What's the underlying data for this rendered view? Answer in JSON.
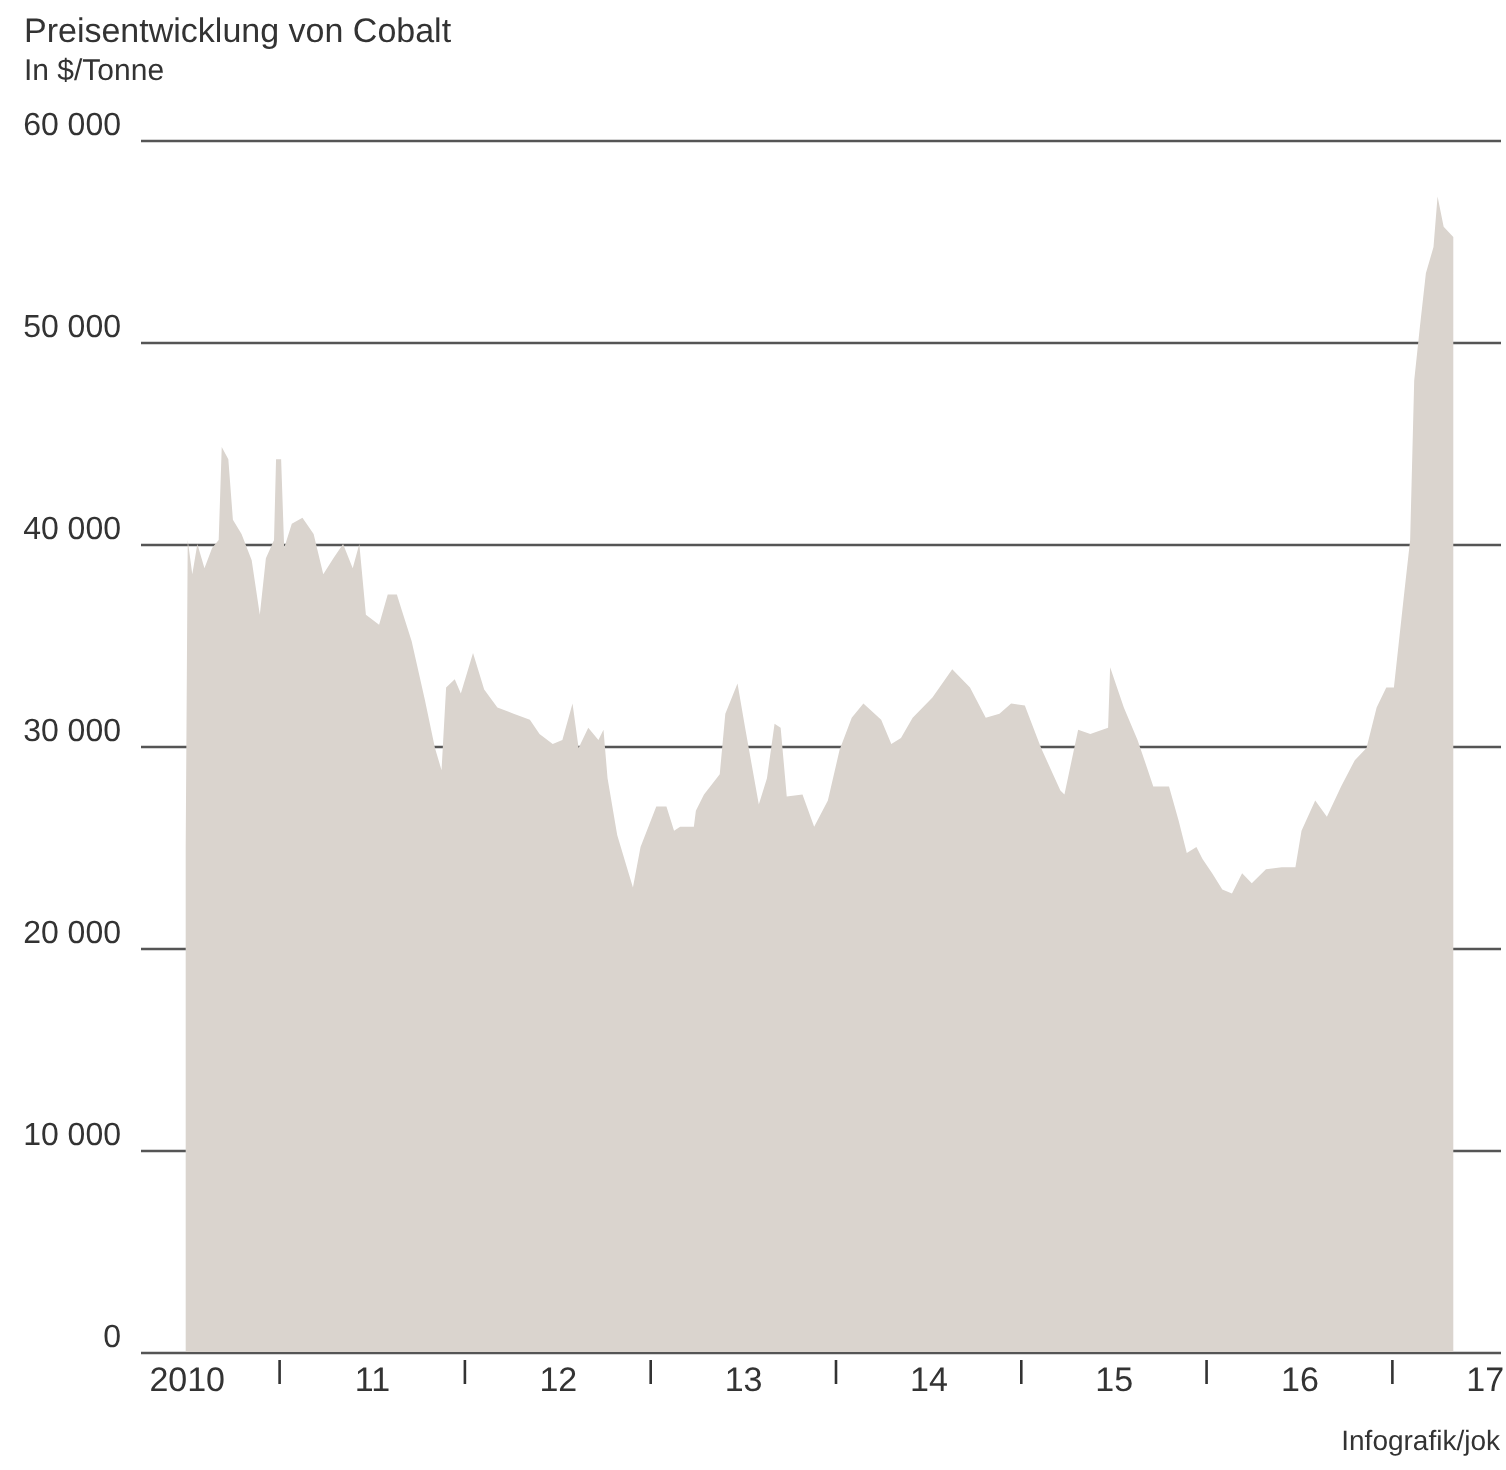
{
  "chart_data": {
    "type": "area",
    "title": "Preisentwicklung von Cobalt",
    "subtitle": "In $/Tonne",
    "color": "#dad4ce",
    "grid": "y",
    "xlim": [
      "2010-04-01",
      "2017-08-01"
    ],
    "ylim": [
      0,
      60000
    ],
    "yticks": [
      {
        "value": 0,
        "label": "0"
      },
      {
        "value": 10000,
        "label": "10 000"
      },
      {
        "value": 20000,
        "label": "20 000"
      },
      {
        "value": 30000,
        "label": "30 000"
      },
      {
        "value": 40000,
        "label": "40 000"
      },
      {
        "value": 50000,
        "label": "50 000"
      },
      {
        "value": 60000,
        "label": "60 000"
      }
    ],
    "xticks": [
      {
        "value": "2010-07-01",
        "label": "2010"
      },
      {
        "value": "2011-01-01",
        "label": null
      },
      {
        "value": "2011-07-01",
        "label": "11"
      },
      {
        "value": "2012-01-01",
        "label": null
      },
      {
        "value": "2012-07-01",
        "label": "12"
      },
      {
        "value": "2013-01-01",
        "label": null
      },
      {
        "value": "2013-07-01",
        "label": "13"
      },
      {
        "value": "2014-01-01",
        "label": null
      },
      {
        "value": "2014-07-01",
        "label": "14"
      },
      {
        "value": "2015-01-01",
        "label": null
      },
      {
        "value": "2015-07-01",
        "label": "15"
      },
      {
        "value": "2016-01-01",
        "label": null
      },
      {
        "value": "2016-07-01",
        "label": "16"
      },
      {
        "value": "2017-01-01",
        "label": null
      },
      {
        "value": "2017-07-01",
        "label": "17"
      }
    ],
    "annotations": [
      "Infografik/jok"
    ],
    "x": [
      "2010-06-30",
      "2010-07-04",
      "2010-07-13",
      "2010-07-23",
      "2010-08-06",
      "2010-08-21",
      "2010-09-03",
      "2010-09-09",
      "2010-09-22",
      "2010-10-01",
      "2010-10-18",
      "2010-11-07",
      "2010-11-23",
      "2010-12-05",
      "2010-12-21",
      "2010-12-25",
      "2011-01-04",
      "2011-01-10",
      "2011-01-25",
      "2011-02-15",
      "2011-03-09",
      "2011-03-28",
      "2011-04-17",
      "2011-05-06",
      "2011-05-25",
      "2011-06-07",
      "2011-06-20",
      "2011-07-16",
      "2011-08-02",
      "2011-08-20",
      "2011-08-30",
      "2011-09-18",
      "2011-10-14",
      "2011-11-03",
      "2011-11-16",
      "2011-11-25",
      "2011-12-12",
      "2011-12-24",
      "2012-01-17",
      "2012-02-08",
      "2012-03-05",
      "2012-04-06",
      "2012-05-08",
      "2012-05-27",
      "2012-06-22",
      "2012-07-11",
      "2012-07-31",
      "2012-08-12",
      "2012-08-31",
      "2012-09-20",
      "2012-09-30",
      "2012-10-08",
      "2012-10-27",
      "2012-11-15",
      "2012-11-27",
      "2012-12-12",
      "2013-01-12",
      "2013-02-01",
      "2013-02-16",
      "2013-02-28",
      "2013-03-27",
      "2013-03-31",
      "2013-04-16",
      "2013-05-17",
      "2013-05-28",
      "2013-06-21",
      "2013-07-06",
      "2013-08-02",
      "2013-08-18",
      "2013-09-02",
      "2013-09-14",
      "2013-09-26",
      "2013-10-27",
      "2013-11-19",
      "2013-12-16",
      "2014-01-08",
      "2014-02-01",
      "2014-02-24",
      "2014-03-31",
      "2014-04-20",
      "2014-05-09",
      "2014-06-01",
      "2014-07-10",
      "2014-08-18",
      "2014-09-22",
      "2014-10-23",
      "2014-11-19",
      "2014-12-12",
      "2015-01-08",
      "2015-02-09",
      "2015-03-19",
      "2015-03-27",
      "2015-04-23",
      "2015-05-17",
      "2015-06-21",
      "2015-06-25",
      "2015-07-22",
      "2015-08-18",
      "2015-09-06",
      "2015-09-18",
      "2015-10-19",
      "2015-11-07",
      "2015-11-23",
      "2015-12-12",
      "2015-12-24",
      "2016-01-12",
      "2016-02-01",
      "2016-02-20",
      "2016-03-11",
      "2016-03-30",
      "2016-04-27",
      "2016-05-28",
      "2016-06-24",
      "2016-07-06",
      "2016-08-02",
      "2016-08-25",
      "2016-09-22",
      "2016-10-19",
      "2016-11-11",
      "2016-12-01",
      "2016-12-20",
      "2017-01-04",
      "2017-01-24",
      "2017-02-05",
      "2017-02-13",
      "2017-02-24",
      "2017-03-08",
      "2017-03-23",
      "2017-03-31",
      "2017-04-12",
      "2017-05-01"
    ],
    "values": [
      25000,
      40200,
      38500,
      40000,
      38800,
      39800,
      40200,
      44800,
      44200,
      41200,
      40500,
      39200,
      36500,
      39300,
      40200,
      44200,
      44200,
      39800,
      41000,
      41300,
      40500,
      38500,
      39300,
      40000,
      38800,
      40000,
      36500,
      36000,
      37500,
      37500,
      36700,
      35200,
      32300,
      29900,
      28800,
      32900,
      33300,
      32600,
      34600,
      32800,
      31900,
      31600,
      31300,
      30600,
      30100,
      30300,
      32100,
      29900,
      30900,
      30300,
      30800,
      28400,
      25600,
      24000,
      23000,
      25000,
      27000,
      27000,
      25800,
      26000,
      26000,
      26800,
      27600,
      28600,
      31600,
      33100,
      30900,
      27100,
      28400,
      31100,
      30900,
      27500,
      27600,
      26000,
      27300,
      29800,
      31400,
      32100,
      31300,
      30100,
      30400,
      31400,
      32400,
      33800,
      32900,
      31400,
      31600,
      32100,
      32000,
      29900,
      27800,
      27600,
      30800,
      30600,
      30900,
      33900,
      31900,
      30300,
      28900,
      28000,
      28000,
      26300,
      24700,
      25000,
      24400,
      23700,
      22900,
      22700,
      23700,
      23200,
      23900,
      24000,
      24000,
      25800,
      27300,
      26500,
      28000,
      29300,
      29900,
      31900,
      32900,
      32900,
      37500,
      40200,
      48100,
      50700,
      53400,
      54700,
      57200,
      55700,
      55200
    ]
  }
}
